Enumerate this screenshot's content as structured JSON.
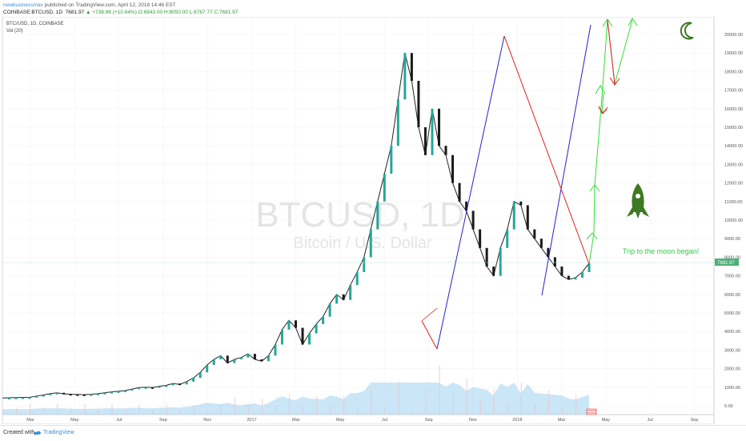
{
  "header": {
    "author": "newbusinessmax",
    "published_text": "published on TradingView.com, April 12, 2018 14:46 EST",
    "symbol": "COINBASE:BTCUSD, 1D",
    "last": "7681.97",
    "change": "▲ +738.98 (+10.64%)",
    "ohlc": "O:6943.00 H:8050.00 L:6767.77 C:7681.97"
  },
  "legend": {
    "symbol_line": "BTC/USD, 1D, COINBASE",
    "volume_label": "Vol (20)"
  },
  "watermark": {
    "main": "BTCUSD, 1D",
    "sub": "Bitcoin / U.S. Dollar"
  },
  "annotation": {
    "text": "Trip to the moon began!",
    "color": "#2ecc40"
  },
  "price_badge": {
    "text": "7681.97",
    "color": "#4caf78"
  },
  "footer": {
    "created_with": "Created with",
    "brand": "TradingView"
  },
  "colors": {
    "blue_trend": "#2424c8",
    "red_trend": "#e02020",
    "green_path": "#33dd33",
    "rocket": "#3d7a22",
    "volume": "#9fd2f0"
  },
  "chart_data": {
    "type": "line",
    "title": "BTC/USD, 1D, COINBASE",
    "x_ticks": [
      "Mar",
      "May",
      "Jul",
      "Sep",
      "Nov",
      "2017",
      "Mar",
      "May",
      "Jul",
      "Sep",
      "Nov",
      "2018",
      "Mar",
      "May",
      "Jul",
      "Sep"
    ],
    "y_ticks": [
      "20000.00",
      "19000.00",
      "18000.00",
      "17000.00",
      "16000.00",
      "15000.00",
      "14000.00",
      "13000.00",
      "12000.00",
      "11000.00",
      "10000.00",
      "9000.00",
      "8000.00",
      "7000.00",
      "6000.00",
      "5000.00",
      "4000.00",
      "3000.00",
      "2000.00",
      "1000.00",
      "0.00"
    ],
    "ylim": [
      0,
      20000
    ],
    "series": [
      {
        "values": [
          420,
          430,
          440,
          450,
          460,
          520,
          580,
          650,
          700,
          640,
          620,
          610,
          600,
          620,
          650,
          700,
          750,
          780,
          820,
          900,
          980,
          1000,
          980,
          1050,
          1100,
          1200,
          1150,
          1300,
          1500,
          1800,
          2200,
          2500,
          2700,
          2300,
          2500,
          2600,
          2800,
          2500,
          2400,
          2700,
          3300,
          4100,
          4600,
          4200,
          3300,
          3900,
          4400,
          4800,
          5500,
          6000,
          5700,
          6500,
          7200,
          8000,
          9500,
          11000,
          12500,
          14000,
          16500,
          19000,
          17500,
          15000,
          13500,
          16000,
          14000,
          13500,
          12000,
          11000,
          10500,
          9500,
          8500,
          7500,
          7000,
          8500,
          9500,
          11000,
          10800,
          9500,
          9000,
          8500,
          8000,
          7500,
          7000,
          6800,
          6900,
          7200,
          7681
        ]
      }
    ],
    "last_value": 7681.97,
    "grid": true
  }
}
